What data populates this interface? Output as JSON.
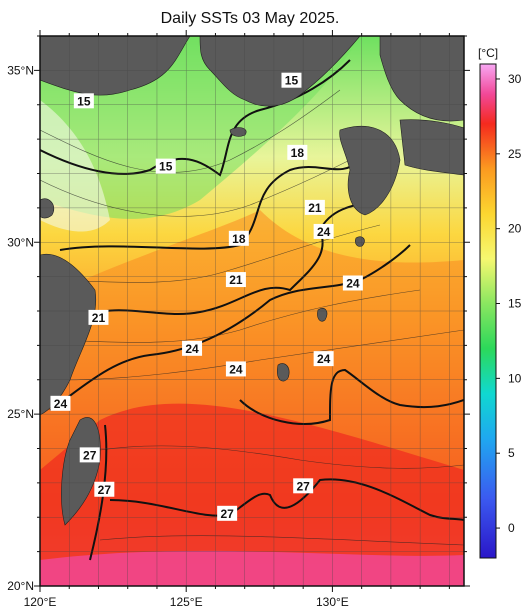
{
  "title": "Daily SSTs 03 May 2025.",
  "map": {
    "lon_range": [
      120,
      134.5
    ],
    "lat_range": [
      20,
      36
    ],
    "lon_ticks": [
      {
        "value": 120,
        "label": "120°E"
      },
      {
        "value": 125,
        "label": "125°E"
      },
      {
        "value": 130,
        "label": "130°E"
      }
    ],
    "lat_ticks": [
      {
        "value": 35,
        "label": "35°N"
      },
      {
        "value": 30,
        "label": "30°N"
      },
      {
        "value": 25,
        "label": "25°N"
      },
      {
        "value": 20,
        "label": "20°N"
      }
    ],
    "grid": true,
    "land_color": "#5a5a5a",
    "contour_labels": [
      {
        "text": "15",
        "lon": 121.5,
        "lat": 34.1
      },
      {
        "text": "15",
        "lon": 128.6,
        "lat": 34.7
      },
      {
        "text": "15",
        "lon": 124.3,
        "lat": 32.2
      },
      {
        "text": "18",
        "lon": 128.8,
        "lat": 32.6
      },
      {
        "text": "21",
        "lon": 129.4,
        "lat": 31.0
      },
      {
        "text": "24",
        "lon": 129.7,
        "lat": 30.3
      },
      {
        "text": "18",
        "lon": 126.8,
        "lat": 30.1
      },
      {
        "text": "21",
        "lon": 126.7,
        "lat": 28.9
      },
      {
        "text": "24",
        "lon": 130.7,
        "lat": 28.8
      },
      {
        "text": "21",
        "lon": 122.0,
        "lat": 27.8
      },
      {
        "text": "24",
        "lon": 125.2,
        "lat": 26.9
      },
      {
        "text": "24",
        "lon": 126.7,
        "lat": 26.3
      },
      {
        "text": "24",
        "lon": 129.7,
        "lat": 26.6
      },
      {
        "text": "24",
        "lon": 120.7,
        "lat": 25.3
      },
      {
        "text": "27",
        "lon": 121.7,
        "lat": 23.8
      },
      {
        "text": "27",
        "lon": 122.2,
        "lat": 22.8
      },
      {
        "text": "27",
        "lon": 129.0,
        "lat": 22.9
      },
      {
        "text": "27",
        "lon": 126.4,
        "lat": 22.1
      }
    ]
  },
  "colorbar": {
    "unit_label": "[°C]",
    "range": [
      -2,
      31
    ],
    "ticks": [
      0,
      5,
      10,
      15,
      20,
      25,
      30
    ],
    "stops": [
      {
        "value": -2,
        "color": "#2a16c8"
      },
      {
        "value": 2,
        "color": "#3b5af0"
      },
      {
        "value": 6,
        "color": "#1fa8f0"
      },
      {
        "value": 9,
        "color": "#10d8d0"
      },
      {
        "value": 12,
        "color": "#2cd85a"
      },
      {
        "value": 15,
        "color": "#8ae660"
      },
      {
        "value": 18,
        "color": "#f6f870"
      },
      {
        "value": 21,
        "color": "#fcd630"
      },
      {
        "value": 24,
        "color": "#fb9a20"
      },
      {
        "value": 27,
        "color": "#f52a1e"
      },
      {
        "value": 29,
        "color": "#f24898"
      },
      {
        "value": 31,
        "color": "#f8a8f4"
      }
    ]
  }
}
